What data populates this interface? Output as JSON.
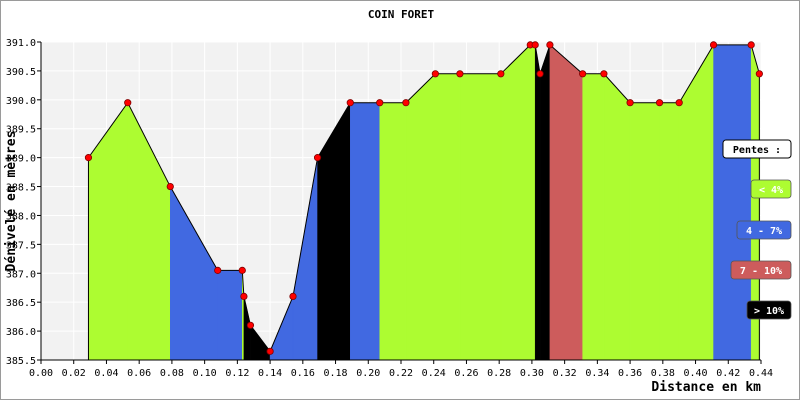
{
  "chart_data": {
    "type": "area",
    "title": "COIN FORET",
    "xlabel": "Distance en km",
    "ylabel": "Dénivelé en mètres",
    "xlim": [
      0.0,
      0.44
    ],
    "ylim": [
      385.5,
      391.0
    ],
    "x_ticks": [
      "0.00",
      "0.02",
      "0.04",
      "0.06",
      "0.08",
      "0.10",
      "0.12",
      "0.14",
      "0.16",
      "0.18",
      "0.20",
      "0.22",
      "0.24",
      "0.26",
      "0.28",
      "0.30",
      "0.32",
      "0.34",
      "0.36",
      "0.38",
      "0.40",
      "0.42",
      "0.44"
    ],
    "y_ticks": [
      "385.5",
      "386.0",
      "386.5",
      "387.0",
      "387.5",
      "388.0",
      "388.5",
      "389.0",
      "389.5",
      "390.0",
      "390.5",
      "391.0"
    ],
    "grid": true,
    "legend_title": "Pentes :",
    "legend": [
      {
        "label": "< 4%",
        "color": "#adfc31",
        "text_color": "#ffffff"
      },
      {
        "label": "4 - 7%",
        "color": "#4169e1",
        "text_color": "#ffffff"
      },
      {
        "label": "7 - 10%",
        "color": "#cd5c5c",
        "text_color": "#ffffff"
      },
      {
        "label": "> 10%",
        "color": "#000000",
        "text_color": "#ffffff"
      }
    ],
    "points": [
      {
        "x": 0.029,
        "y": 389.0
      },
      {
        "x": 0.053,
        "y": 389.95
      },
      {
        "x": 0.079,
        "y": 388.5
      },
      {
        "x": 0.108,
        "y": 387.05
      },
      {
        "x": 0.123,
        "y": 387.05
      },
      {
        "x": 0.124,
        "y": 386.6
      },
      {
        "x": 0.128,
        "y": 386.1
      },
      {
        "x": 0.14,
        "y": 385.65
      },
      {
        "x": 0.154,
        "y": 386.6
      },
      {
        "x": 0.169,
        "y": 389.0
      },
      {
        "x": 0.189,
        "y": 389.95
      },
      {
        "x": 0.207,
        "y": 389.95
      },
      {
        "x": 0.223,
        "y": 389.95
      },
      {
        "x": 0.241,
        "y": 390.45
      },
      {
        "x": 0.256,
        "y": 390.45
      },
      {
        "x": 0.281,
        "y": 390.45
      },
      {
        "x": 0.299,
        "y": 390.95
      },
      {
        "x": 0.302,
        "y": 390.95
      },
      {
        "x": 0.305,
        "y": 390.45
      },
      {
        "x": 0.311,
        "y": 390.95
      },
      {
        "x": 0.331,
        "y": 390.45
      },
      {
        "x": 0.344,
        "y": 390.45
      },
      {
        "x": 0.36,
        "y": 389.95
      },
      {
        "x": 0.378,
        "y": 389.95
      },
      {
        "x": 0.39,
        "y": 389.95
      },
      {
        "x": 0.411,
        "y": 390.95
      },
      {
        "x": 0.434,
        "y": 390.95
      },
      {
        "x": 0.439,
        "y": 390.45
      }
    ],
    "segment_colors": [
      "#adfc31",
      "#adfc31",
      "#4169e1",
      "#4169e1",
      "#adfc31",
      "#000000",
      "#000000",
      "#4169e1",
      "#4169e1",
      "#000000",
      "#4169e1",
      "#adfc31",
      "#adfc31",
      "#adfc31",
      "#adfc31",
      "#adfc31",
      "#adfc31",
      "#000000",
      "#000000",
      "#cd5c5c",
      "#adfc31",
      "#adfc31",
      "#adfc31",
      "#adfc31",
      "#adfc31",
      "#4169e1",
      "#adfc31"
    ],
    "marker_color": "#ff0000"
  }
}
